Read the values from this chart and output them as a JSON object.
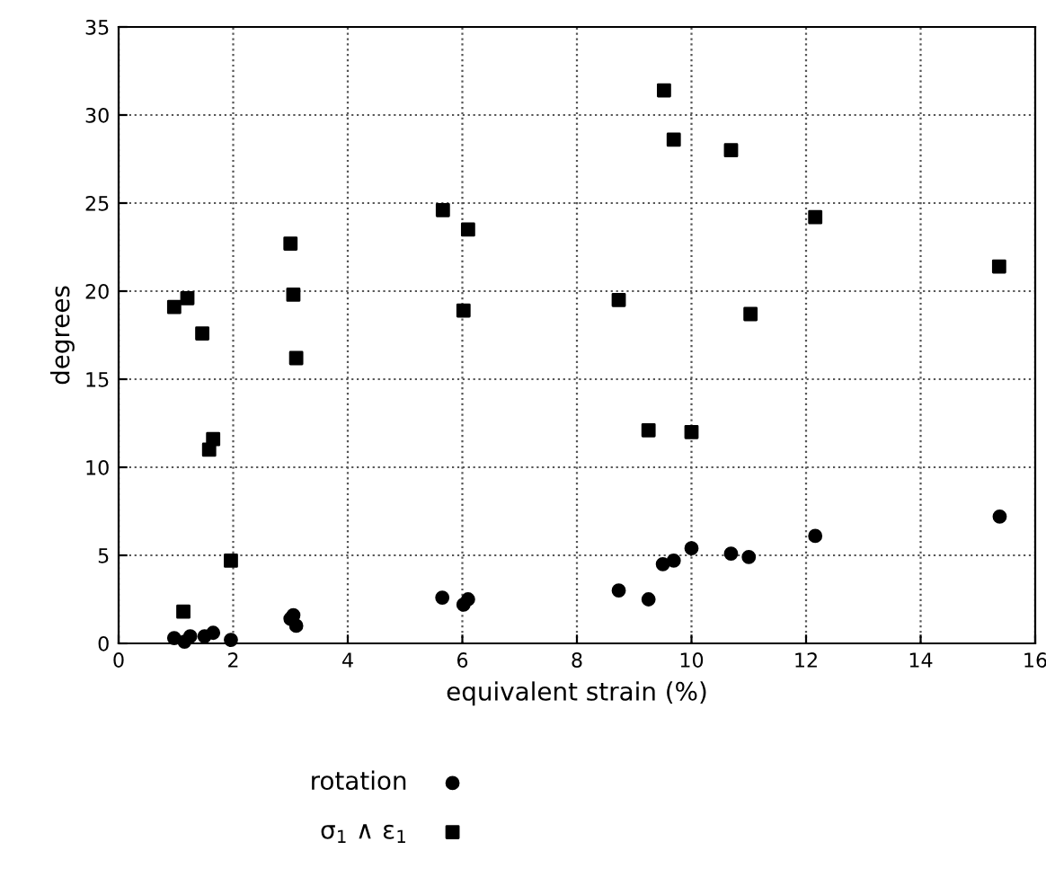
{
  "chart_data": {
    "type": "scatter",
    "xlabel": "equivalent strain (%)",
    "ylabel": "degrees",
    "xlim": [
      0,
      16
    ],
    "xticks": [
      0,
      2,
      4,
      6,
      8,
      10,
      12,
      14,
      16
    ],
    "ylim": [
      0,
      35
    ],
    "yticks": [
      0,
      5,
      10,
      15,
      20,
      25,
      30,
      35
    ],
    "grid": true,
    "legend": "bottom",
    "series": [
      {
        "name": "rotation",
        "color": "#000000",
        "marker": "circle",
        "x": [
          0.97,
          1.15,
          1.25,
          1.5,
          1.65,
          1.96,
          3.0,
          3.05,
          3.1,
          5.65,
          6.02,
          6.1,
          8.73,
          9.25,
          9.5,
          9.69,
          10.0,
          10.69,
          11.0,
          12.16,
          15.38
        ],
        "values": [
          0.3,
          0.1,
          0.4,
          0.4,
          0.6,
          0.2,
          1.4,
          1.6,
          1.0,
          2.6,
          2.2,
          2.5,
          3.0,
          2.5,
          4.5,
          4.7,
          5.4,
          5.1,
          4.9,
          6.1,
          7.2
        ]
      },
      {
        "name": "σ$_{1}$ ∧ ε$_{1}$",
        "color": "#000000",
        "marker": "square",
        "x": [
          0.97,
          1.2,
          1.46,
          1.58,
          1.65,
          1.13,
          1.96,
          3.0,
          3.05,
          3.1,
          5.66,
          6.1,
          6.02,
          9.52,
          9.69,
          10.69,
          12.16,
          15.37,
          8.73,
          11.03,
          9.25,
          10.0
        ],
        "values": [
          19.1,
          19.6,
          17.6,
          11.0,
          11.6,
          1.8,
          4.7,
          22.7,
          19.8,
          16.2,
          24.6,
          23.5,
          18.9,
          31.4,
          28.6,
          28.0,
          24.2,
          21.4,
          19.5,
          18.7,
          12.1,
          12.0
        ]
      }
    ]
  }
}
